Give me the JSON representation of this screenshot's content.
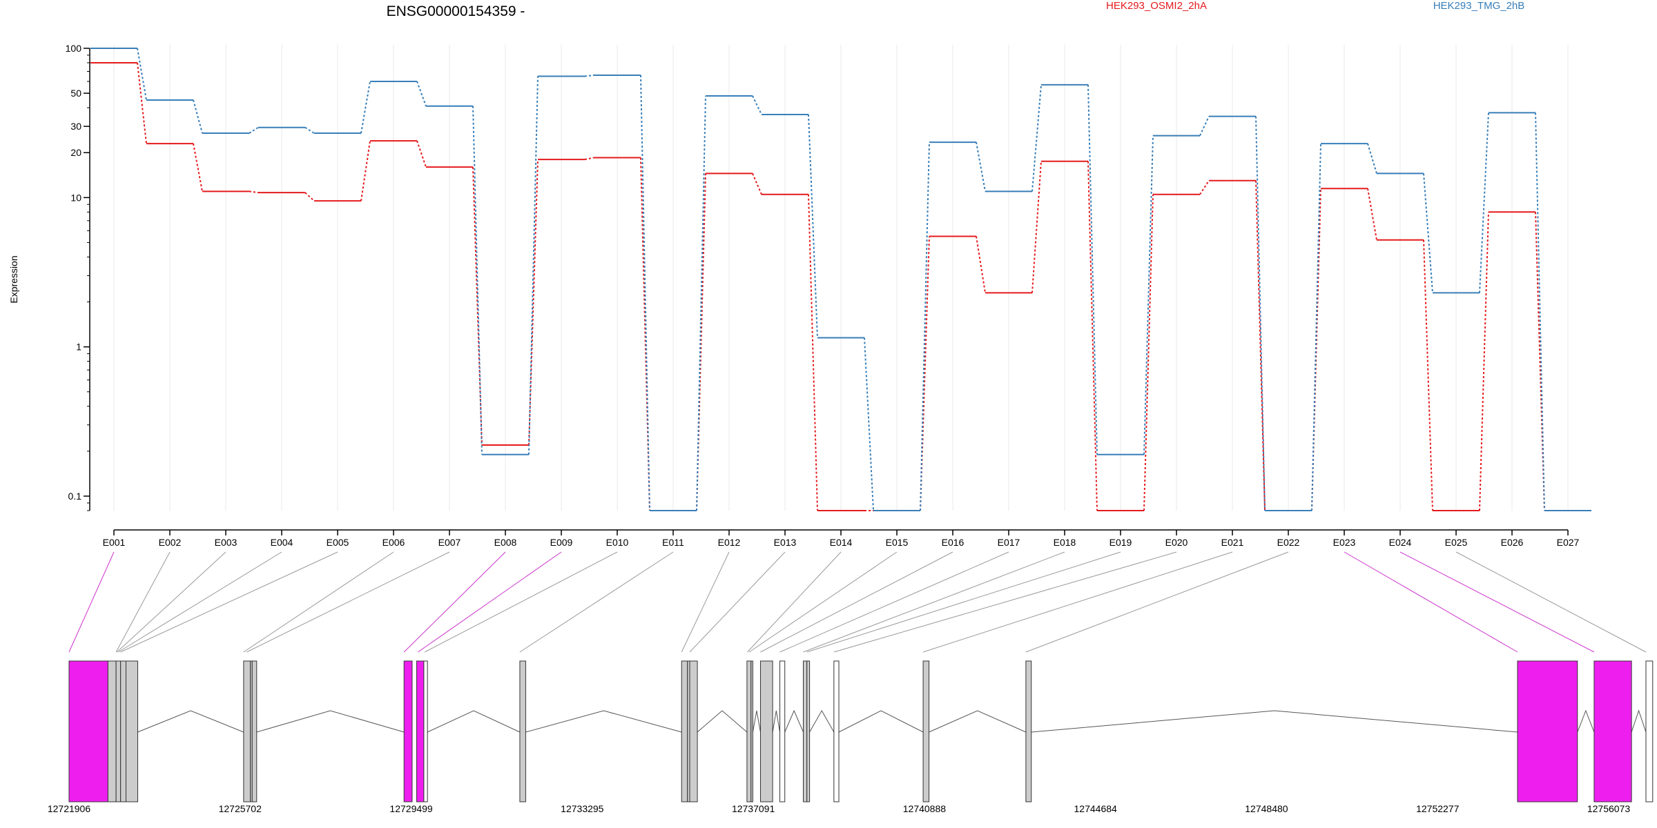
{
  "chart_data": {
    "type": "line",
    "title": "ENSG00000154359 -",
    "ylabel": "Expression",
    "xlabel": "",
    "y_scale": "log",
    "ylim": [
      0.08,
      100
    ],
    "y_ticks": [
      {
        "label": "100",
        "value": 100
      },
      {
        "label": "50",
        "value": 50
      },
      {
        "label": "30",
        "value": 30
      },
      {
        "label": "20",
        "value": 20
      },
      {
        "label": "10",
        "value": 10
      },
      {
        "label": "1",
        "value": 1
      },
      {
        "label": "0.1",
        "value": 0.1
      }
    ],
    "grid": true,
    "legend_position": "top",
    "categories": [
      "E001",
      "E002",
      "E003",
      "E004",
      "E005",
      "E006",
      "E007",
      "E008",
      "E009",
      "E010",
      "E011",
      "E012",
      "E013",
      "E014",
      "E015",
      "E016",
      "E017",
      "E018",
      "E019",
      "E020",
      "E021",
      "E022",
      "E023",
      "E024",
      "E025",
      "E026",
      "E027"
    ],
    "series": [
      {
        "name": "HEK293_OSMI2_2hA",
        "color": "#e41a1c",
        "values": [
          80,
          23,
          11,
          10.8,
          9.5,
          24,
          16,
          0.22,
          18,
          18.5,
          0.08,
          14.5,
          10.5,
          0.08,
          0.08,
          5.5,
          2.3,
          17.5,
          0.08,
          10.5,
          13,
          0.08,
          11.5,
          5.2,
          0.08,
          8,
          0.08
        ]
      },
      {
        "name": "HEK293_TMG_2hB",
        "color": "#377eb8",
        "values": [
          100,
          45,
          27,
          29.5,
          27,
          60,
          41,
          0.19,
          65,
          66,
          0.08,
          48,
          36,
          1.15,
          0.08,
          23.5,
          11,
          57,
          0.19,
          26,
          35,
          0.08,
          23,
          14.5,
          2.3,
          37,
          0.08
        ]
      }
    ],
    "genomic_axis": {
      "tick_labels": [
        "12721906",
        "12725702",
        "12729499",
        "12733295",
        "12737091",
        "12740888",
        "12744684",
        "12748480",
        "12752277",
        "12756073"
      ],
      "tick_values": [
        12721906,
        12725702,
        12729499,
        12733295,
        12737091,
        12740888,
        12744684,
        12748480,
        12752277,
        12756073
      ],
      "range": [
        12721906,
        12756073
      ]
    },
    "gene_model": {
      "highlight_color": "#ee1fee",
      "exon_color": "#cccccc",
      "exons": [
        {
          "start": 12721906,
          "end": 12722770,
          "style": "highlight"
        },
        {
          "start": 12722770,
          "end": 12722950,
          "style": "gray"
        },
        {
          "start": 12722950,
          "end": 12723050,
          "style": "gray"
        },
        {
          "start": 12723050,
          "end": 12723170,
          "style": "gray"
        },
        {
          "start": 12723170,
          "end": 12723430,
          "style": "gray"
        },
        {
          "start": 12725780,
          "end": 12725930,
          "style": "gray"
        },
        {
          "start": 12725930,
          "end": 12725970,
          "style": "gray"
        },
        {
          "start": 12725970,
          "end": 12726070,
          "style": "gray"
        },
        {
          "start": 12729340,
          "end": 12729520,
          "style": "highlight"
        },
        {
          "start": 12729620,
          "end": 12729780,
          "style": "highlight"
        },
        {
          "start": 12729780,
          "end": 12729860,
          "style": "white"
        },
        {
          "start": 12731910,
          "end": 12732040,
          "style": "gray"
        },
        {
          "start": 12735500,
          "end": 12735630,
          "style": "gray"
        },
        {
          "start": 12735630,
          "end": 12735680,
          "style": "gray"
        },
        {
          "start": 12735680,
          "end": 12735850,
          "style": "gray"
        },
        {
          "start": 12736950,
          "end": 12737040,
          "style": "gray"
        },
        {
          "start": 12737040,
          "end": 12737080,
          "style": "gray"
        },
        {
          "start": 12737250,
          "end": 12737520,
          "style": "gray"
        },
        {
          "start": 12737680,
          "end": 12737790,
          "style": "white"
        },
        {
          "start": 12738200,
          "end": 12738280,
          "style": "gray"
        },
        {
          "start": 12738280,
          "end": 12738340,
          "style": "gray"
        },
        {
          "start": 12738880,
          "end": 12738990,
          "style": "white"
        },
        {
          "start": 12740860,
          "end": 12740990,
          "style": "gray"
        },
        {
          "start": 12743140,
          "end": 12743260,
          "style": "gray"
        },
        {
          "start": 12754050,
          "end": 12755380,
          "style": "highlight"
        },
        {
          "start": 12755750,
          "end": 12756580,
          "style": "highlight"
        },
        {
          "start": 12756900,
          "end": 12757050,
          "style": "white"
        }
      ],
      "introns": [
        [
          12723430,
          12725780
        ],
        [
          12726070,
          12729340
        ],
        [
          12729860,
          12731910
        ],
        [
          12732040,
          12735500
        ],
        [
          12735850,
          12736950
        ],
        [
          12737080,
          12737250
        ],
        [
          12737520,
          12737680
        ],
        [
          12737790,
          12738200
        ],
        [
          12738340,
          12738880
        ],
        [
          12738990,
          12740860
        ],
        [
          12740990,
          12743140
        ],
        [
          12743260,
          12754050
        ],
        [
          12755380,
          12755750
        ],
        [
          12756580,
          12756900
        ]
      ],
      "exon_links": [
        {
          "exon": "E001",
          "at": 12721906,
          "highlight": true
        },
        {
          "exon": "E002",
          "at": 12722950,
          "highlight": false
        },
        {
          "exon": "E003",
          "at": 12722970,
          "highlight": false
        },
        {
          "exon": "E004",
          "at": 12723000,
          "highlight": false
        },
        {
          "exon": "E005",
          "at": 12723050,
          "highlight": false
        },
        {
          "exon": "E006",
          "at": 12725780,
          "highlight": false
        },
        {
          "exon": "E007",
          "at": 12725850,
          "highlight": false
        },
        {
          "exon": "E008",
          "at": 12729340,
          "highlight": true
        },
        {
          "exon": "E009",
          "at": 12729650,
          "highlight": true
        },
        {
          "exon": "E010",
          "at": 12729800,
          "highlight": false
        },
        {
          "exon": "E011",
          "at": 12731910,
          "highlight": false
        },
        {
          "exon": "E012",
          "at": 12735500,
          "highlight": false
        },
        {
          "exon": "E013",
          "at": 12735680,
          "highlight": false
        },
        {
          "exon": "E014",
          "at": 12736960,
          "highlight": false
        },
        {
          "exon": "E015",
          "at": 12737000,
          "highlight": false
        },
        {
          "exon": "E016",
          "at": 12737250,
          "highlight": false
        },
        {
          "exon": "E017",
          "at": 12737680,
          "highlight": false
        },
        {
          "exon": "E018",
          "at": 12738200,
          "highlight": false
        },
        {
          "exon": "E019",
          "at": 12738280,
          "highlight": false
        },
        {
          "exon": "E020",
          "at": 12738880,
          "highlight": false
        },
        {
          "exon": "E021",
          "at": 12740860,
          "highlight": false
        },
        {
          "exon": "E022",
          "at": 12743140,
          "highlight": false
        },
        {
          "exon": "E023",
          "at": 12754050,
          "highlight": true
        },
        {
          "exon": "E024",
          "at": 12755750,
          "highlight": true
        },
        {
          "exon": "E025",
          "at": 12756900,
          "highlight": false
        }
      ]
    }
  }
}
